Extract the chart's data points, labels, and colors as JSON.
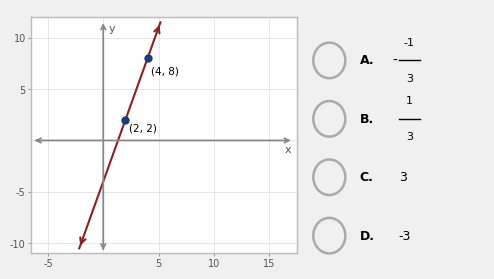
{
  "points": [
    [
      2,
      2
    ],
    [
      4,
      8
    ]
  ],
  "point_labels": [
    "(2, 2)",
    "(4, 8)"
  ],
  "point_color": "#1e3a78",
  "line_color": "#8b2020",
  "xlim": [
    -6.5,
    17.5
  ],
  "ylim": [
    -11,
    12
  ],
  "xticks": [
    -5,
    5,
    10,
    15
  ],
  "yticks": [
    -10,
    -5,
    5,
    10
  ],
  "xlabel": "x",
  "ylabel": "y",
  "bg_color": "#f0f0f0",
  "plot_bg": "#ffffff",
  "graph_box_color": "#bbbbbb",
  "choices": [
    {
      "label": "A.",
      "line1": "-1",
      "line2": "3",
      "has_fraction": true,
      "negative": true
    },
    {
      "label": "B.",
      "line1": "1",
      "line2": "3",
      "has_fraction": true,
      "negative": false
    },
    {
      "label": "C.",
      "text": "3",
      "has_fraction": false
    },
    {
      "label": "D.",
      "text": "-3",
      "has_fraction": false
    }
  ]
}
